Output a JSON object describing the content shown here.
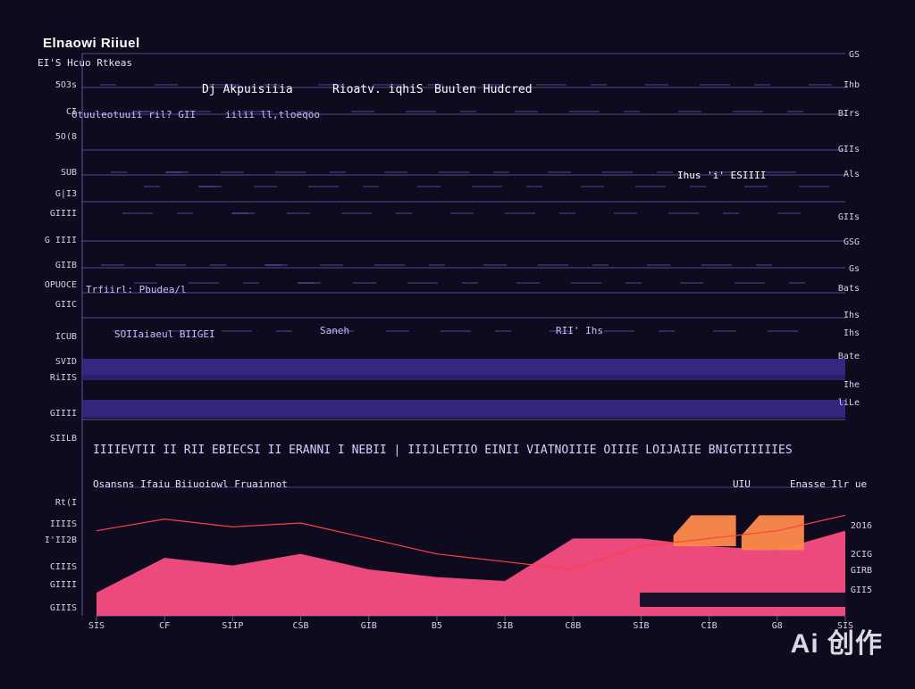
{
  "header": {
    "title": "Elnaowi Riiuel",
    "subtitle": "EI'S Hcuo Rtkeas"
  },
  "upper_panel": {
    "top_row_labels": [
      "Dj Akpuisiiia",
      "Rioatv. iqhiS",
      "Buulen Hudcred"
    ],
    "row_annotations": [
      "Otuuleotuuii ril? GII",
      "iilii ll,tloeqoo",
      "Ihus 'i' ESIIII",
      "Trfiirl: Pbudea/l",
      "SOIIaiaeul BIIGEI",
      "Saneh",
      "RII' Ihs"
    ],
    "left_ticks": [
      "5O3s",
      "CI",
      "5O(8",
      "SUB",
      "G|I3",
      "GIIII",
      "G IIII",
      "GIIB",
      "OPUOCE",
      "GIIC",
      "ICUB",
      "SVID",
      "RiIIS",
      "GIIII",
      "SIILB"
    ],
    "right_ticks": [
      "GS",
      "Ihb",
      "BIrs",
      "GIIs",
      "Als",
      "GIIs",
      "GSG",
      "Gs",
      "Bats",
      "Ihs",
      "Ihs",
      "Bate",
      "Ihe",
      "liLe"
    ],
    "banner": "IIIIEVTII II RII EBIECSI II ERANNI I NEBII | IIIJLETIIO EINII VIATNOIIIE OIIIE LOIJAIIE BNIGTIIIIIES"
  },
  "lower_panel": {
    "header_left": "Osansns Ifaiu",
    "header_mid": "Biiuoiowl Fruainnot",
    "header_right_short": "UIU",
    "header_right": "Enasse Ilr ue",
    "left_ticks": [
      "Rt(I",
      "IIIIS",
      "I'II2B",
      "CIIIS",
      "GIIII",
      "GIIIS"
    ],
    "right_ticks": [
      "2O16",
      "2CIG",
      "GIRB",
      "GII5"
    ],
    "x_labels": [
      "SIS",
      "CF",
      "SIIP",
      "CSB",
      "GIB",
      "B5",
      "SIB",
      "C8B",
      "SIB",
      "CIB",
      "G8",
      "SIS"
    ]
  },
  "colors": {
    "background": "#0f0b1e",
    "grid": "#5a5aa0",
    "area_main": "#ff4f86",
    "area_orange": "#ff8a4c",
    "band": "#3a2a8a",
    "line_red": "#ff4040",
    "line_blue": "#6f6fff"
  },
  "chart_data": {
    "type": "area",
    "title": "Elnaowi Riiuel",
    "x": [
      "SIS",
      "CF",
      "SIIP",
      "CSB",
      "GIB",
      "B5",
      "SIB",
      "C8B",
      "SIB",
      "CIB",
      "G8",
      "SIS"
    ],
    "series": [
      {
        "name": "",
        "values": [
          6,
          15,
          13,
          16,
          12,
          10,
          9,
          20,
          20,
          18,
          17,
          22
        ]
      },
      {
        "values": [
          0,
          0,
          0,
          0,
          0,
          0,
          0,
          0,
          0,
          26,
          26,
          0
        ]
      },
      {
        "values": [
          22,
          25,
          23,
          24,
          20,
          16,
          14,
          12,
          18,
          20,
          22,
          26
        ]
      }
    ],
    "grid": true,
    "legend": "none"
  },
  "watermark": "Ai 创作"
}
